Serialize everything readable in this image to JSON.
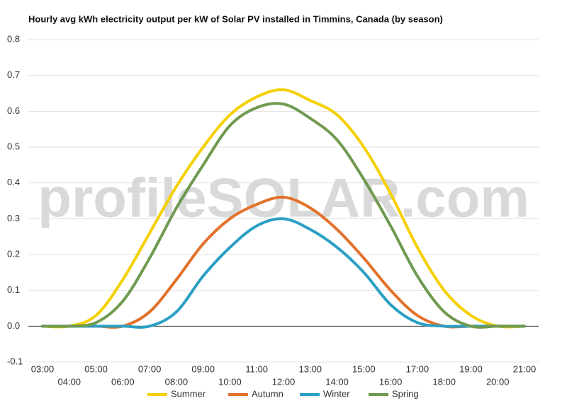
{
  "chart_data": {
    "type": "line",
    "title": "Hourly avg kWh electricity output per kW of Solar PV installed in Timmins, Canada (by season)",
    "watermark": "profileSOLAR.com",
    "categories": [
      "03:00",
      "04:00",
      "05:00",
      "06:00",
      "07:00",
      "08:00",
      "09:00",
      "10:00",
      "11:00",
      "12:00",
      "13:00",
      "14:00",
      "15:00",
      "16:00",
      "17:00",
      "18:00",
      "19:00",
      "20:00",
      "21:00"
    ],
    "series": [
      {
        "name": "Summer",
        "color": "#f5d000",
        "values": [
          0,
          0,
          0.03,
          0.13,
          0.26,
          0.39,
          0.5,
          0.59,
          0.64,
          0.66,
          0.63,
          0.59,
          0.5,
          0.37,
          0.22,
          0.1,
          0.03,
          0,
          0
        ]
      },
      {
        "name": "Autumn",
        "color": "#e2712a",
        "values": [
          0,
          0,
          0,
          0,
          0.04,
          0.13,
          0.23,
          0.3,
          0.34,
          0.36,
          0.33,
          0.27,
          0.19,
          0.1,
          0.03,
          0,
          0,
          0,
          0
        ]
      },
      {
        "name": "Winter",
        "color": "#2a9fc4",
        "values": [
          0,
          0,
          0,
          0,
          0,
          0.04,
          0.14,
          0.22,
          0.28,
          0.3,
          0.27,
          0.22,
          0.15,
          0.06,
          0.01,
          0,
          0,
          0,
          0
        ]
      },
      {
        "name": "Spring",
        "color": "#6f9a4f",
        "values": [
          0,
          0,
          0.01,
          0.07,
          0.19,
          0.33,
          0.45,
          0.56,
          0.61,
          0.62,
          0.58,
          0.52,
          0.41,
          0.28,
          0.14,
          0.04,
          0,
          0,
          0
        ]
      }
    ],
    "ylim": [
      -0.1,
      0.8
    ],
    "yticks": [
      -0.1,
      {
        "value": 0,
        "label": "0.0"
      },
      0.1,
      0.2,
      0.3,
      0.4,
      0.5,
      0.6,
      0.7,
      0.8
    ],
    "grid": true
  }
}
